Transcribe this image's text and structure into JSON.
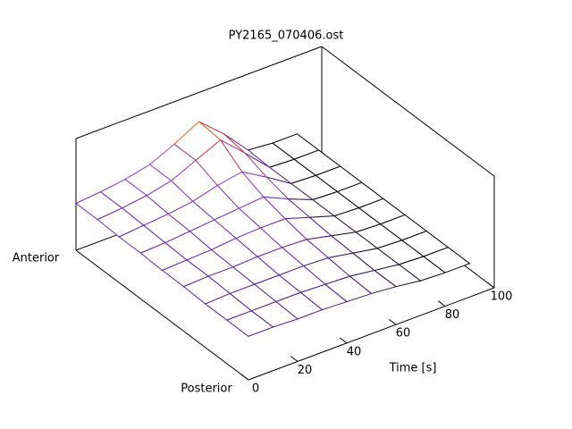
{
  "chart_data": {
    "type": "surface",
    "title": "PY2165_070406.ost",
    "xlabel": "Time [s]",
    "ylabels": [
      "Anterior",
      "Posterior"
    ],
    "x": [
      0,
      10,
      20,
      30,
      40,
      50,
      60,
      70,
      80,
      90
    ],
    "xlim": [
      0,
      100
    ],
    "xticks": [
      0,
      20,
      40,
      60,
      80,
      100
    ],
    "zlim": [
      0,
      1
    ],
    "cblim": [
      0.3,
      0.75
    ],
    "palette": [
      "#000000",
      "#6a2aa8",
      "#9448c8",
      "#d0342c",
      "#ffd200"
    ],
    "z": [
      [
        0.42,
        0.44,
        0.47,
        0.52,
        0.62,
        0.74,
        0.55,
        0.32,
        0.3,
        0.3
      ],
      [
        0.42,
        0.44,
        0.47,
        0.52,
        0.62,
        0.72,
        0.52,
        0.31,
        0.3,
        0.3
      ],
      [
        0.41,
        0.43,
        0.45,
        0.48,
        0.54,
        0.58,
        0.45,
        0.31,
        0.3,
        0.3
      ],
      [
        0.41,
        0.42,
        0.44,
        0.46,
        0.48,
        0.5,
        0.4,
        0.31,
        0.3,
        0.3
      ],
      [
        0.4,
        0.41,
        0.42,
        0.44,
        0.45,
        0.45,
        0.38,
        0.31,
        0.3,
        0.3
      ],
      [
        0.4,
        0.41,
        0.41,
        0.42,
        0.42,
        0.41,
        0.36,
        0.31,
        0.3,
        0.3
      ],
      [
        0.39,
        0.4,
        0.4,
        0.4,
        0.4,
        0.39,
        0.35,
        0.31,
        0.3,
        0.3
      ],
      [
        0.39,
        0.39,
        0.39,
        0.39,
        0.38,
        0.37,
        0.34,
        0.31,
        0.3,
        0.3
      ],
      [
        0.39,
        0.39,
        0.38,
        0.38,
        0.37,
        0.36,
        0.34,
        0.31,
        0.3,
        0.3
      ]
    ]
  }
}
